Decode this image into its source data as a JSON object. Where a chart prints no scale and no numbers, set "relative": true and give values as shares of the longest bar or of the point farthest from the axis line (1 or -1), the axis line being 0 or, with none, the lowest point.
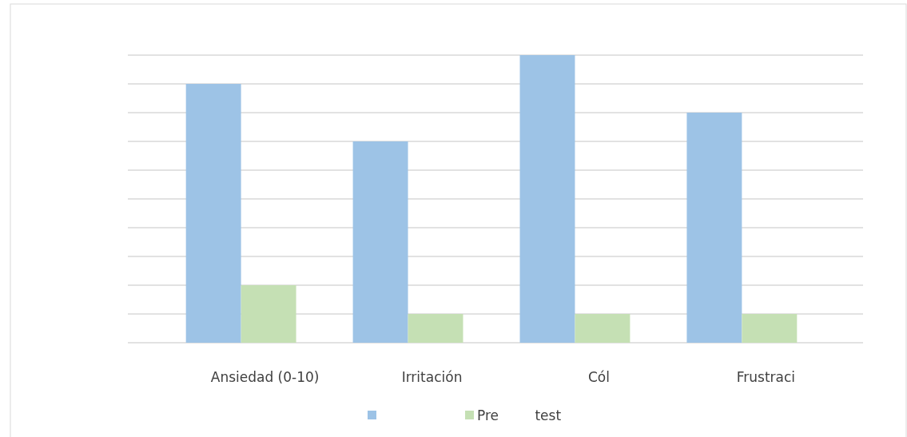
{
  "chart_data": {
    "type": "bar",
    "relative": true,
    "grid": true,
    "legend": "bottom",
    "categories": [
      "Ansiedad (0-10)",
      "Irritación",
      "Cól",
      "Frustraci"
    ],
    "series": [
      {
        "color": "#9dc3e6",
        "values": [
          0.9,
          0.7,
          1,
          0.8
        ]
      },
      {
        "name": "Pre test",
        "color": "#c5e0b4",
        "values": [
          0.2,
          0.1,
          0.1,
          0.1
        ]
      }
    ]
  }
}
